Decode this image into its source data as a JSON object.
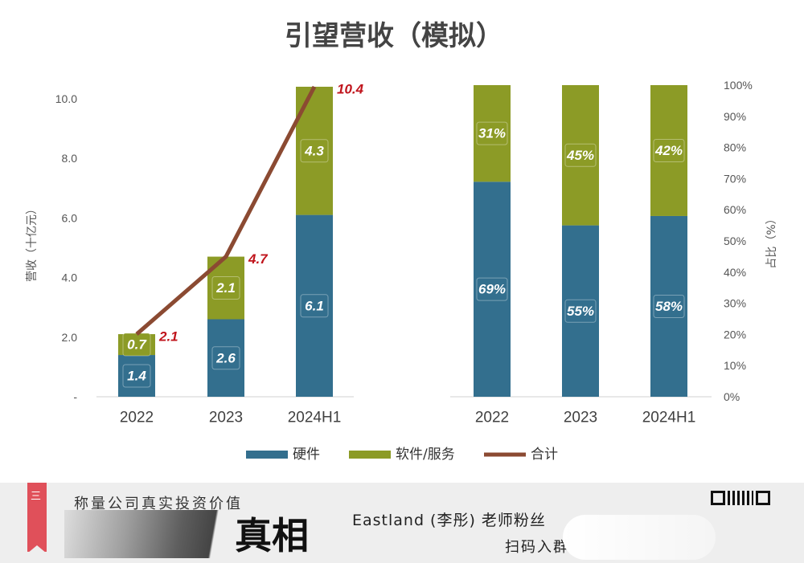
{
  "chart_data": [
    {
      "type": "bar",
      "stacked": true,
      "title": "引望营收（模拟）",
      "ylabel": "营收（十亿元）",
      "ylim": [
        0,
        10.4
      ],
      "yticks": [
        0,
        2,
        4,
        6,
        8,
        10
      ],
      "ytick_labels": [
        "-",
        "2.0",
        "4.0",
        "6.0",
        "8.0",
        "10.0"
      ],
      "categories": [
        "2022",
        "2023",
        "2024H1"
      ],
      "series": [
        {
          "name": "硬件",
          "values": [
            1.4,
            2.6,
            6.1
          ],
          "labels": [
            "1.4",
            "2.6",
            "6.1"
          ],
          "color": "#336f8e"
        },
        {
          "name": "软件/服务",
          "values": [
            0.7,
            2.1,
            4.3
          ],
          "labels": [
            "0.7",
            "2.1",
            "4.3"
          ],
          "color": "#8c9b26"
        }
      ],
      "line": {
        "name": "合计",
        "values": [
          2.1,
          4.7,
          10.4
        ],
        "labels": [
          "2.1",
          "4.7",
          "10.4"
        ],
        "color": "#8b4a32"
      }
    },
    {
      "type": "bar",
      "stacked": true,
      "percent": true,
      "ylabel": "占比（%）",
      "ylim": [
        0,
        100
      ],
      "yticks": [
        0,
        10,
        20,
        30,
        40,
        50,
        60,
        70,
        80,
        90,
        100
      ],
      "ytick_labels": [
        "0%",
        "10%",
        "20%",
        "30%",
        "40%",
        "50%",
        "60%",
        "70%",
        "80%",
        "90%",
        "100%"
      ],
      "categories": [
        "2022",
        "2023",
        "2024H1"
      ],
      "series": [
        {
          "name": "硬件",
          "values": [
            69,
            55,
            58
          ],
          "labels": [
            "69%",
            "55%",
            "58%"
          ],
          "color": "#336f8e"
        },
        {
          "name": "软件/服务",
          "values": [
            31,
            45,
            42
          ],
          "labels": [
            "31%",
            "45%",
            "42%"
          ],
          "color": "#8c9b26"
        }
      ]
    }
  ],
  "legend": [
    {
      "name": "硬件",
      "kind": "bar",
      "color": "#336f8e"
    },
    {
      "name": "软件/服务",
      "kind": "bar",
      "color": "#8c9b26"
    },
    {
      "name": "合计",
      "kind": "line",
      "color": "#8b4a32"
    }
  ],
  "banner": {
    "ribbon_text": "三",
    "tagline": "称量公司真实投资价值",
    "big_text": "真相",
    "eastland": "Eastland (李彤) 老师粉丝",
    "scan_text": "扫码入群"
  }
}
